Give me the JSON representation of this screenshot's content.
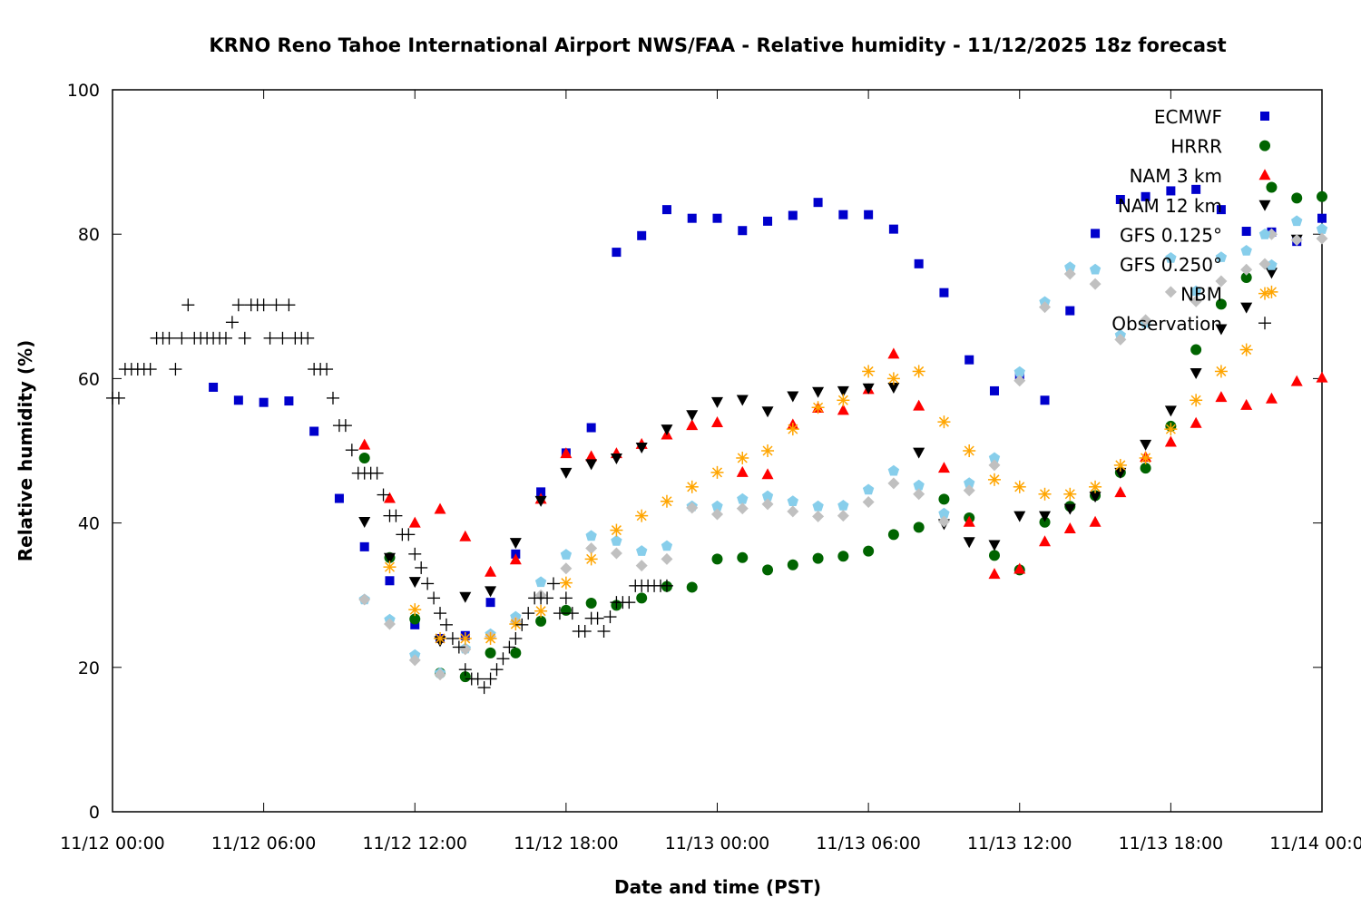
{
  "chart_data": {
    "type": "scatter",
    "title": "KRNO Reno Tahoe International Airport NWS/FAA - Relative humidity - 11/12/2025 18z forecast",
    "xlabel": "Date and time (PST)",
    "ylabel": "Relative humidity (%)",
    "xlim_hours": [
      0,
      48
    ],
    "ylim": [
      0,
      100
    ],
    "yticks": [
      0,
      20,
      40,
      60,
      80,
      100
    ],
    "xticks": [
      {
        "h": 0,
        "label": "11/12 00:00"
      },
      {
        "h": 6,
        "label": "11/12 06:00"
      },
      {
        "h": 12,
        "label": "11/12 12:00"
      },
      {
        "h": 18,
        "label": "11/12 18:00"
      },
      {
        "h": 24,
        "label": "11/13 00:00"
      },
      {
        "h": 30,
        "label": "11/13 06:00"
      },
      {
        "h": 36,
        "label": "11/13 12:00"
      },
      {
        "h": 42,
        "label": "11/13 18:00"
      },
      {
        "h": 48,
        "label": "11/14 00:00"
      }
    ],
    "legend_position": "top-right",
    "series": [
      {
        "name": "ECMWF",
        "marker": "square",
        "color": "#0000cc",
        "x": [
          4,
          5,
          6,
          7,
          8,
          9,
          10,
          11,
          12,
          13,
          14,
          15,
          16,
          17,
          18,
          19,
          20,
          21,
          22,
          23,
          24,
          25,
          26,
          27,
          28,
          29,
          30,
          31,
          32,
          33,
          34,
          35,
          36,
          37,
          38,
          39,
          40,
          41,
          42,
          43,
          44,
          45,
          46,
          47,
          48
        ],
        "y": [
          58.8,
          57,
          56.7,
          56.9,
          52.7,
          43.4,
          36.7,
          32,
          25.9,
          24,
          24.4,
          29,
          35.7,
          44.3,
          49.7,
          53.2,
          77.5,
          79.8,
          83.4,
          82.2,
          82.2,
          80.5,
          81.8,
          82.6,
          84.4,
          82.7,
          82.7,
          80.7,
          75.9,
          71.9,
          62.6,
          58.3,
          60.2,
          57,
          69.4,
          80.1,
          84.8,
          85.2,
          86,
          86.2,
          83.4,
          80.4,
          80.3,
          79,
          82.2
        ]
      },
      {
        "name": "HRRR",
        "color": "#006400",
        "marker": "circle",
        "x": [
          10,
          11,
          12,
          13,
          14,
          15,
          16,
          17,
          18,
          19,
          20,
          21,
          22,
          23,
          24,
          25,
          26,
          27,
          28,
          29,
          30,
          31,
          32,
          33,
          34,
          35,
          36,
          37,
          38,
          39,
          40,
          41,
          42,
          43,
          44,
          45,
          46,
          47,
          48
        ],
        "y": [
          49,
          35.2,
          26.7,
          19.2,
          18.7,
          22,
          22,
          26.4,
          27.9,
          28.9,
          28.6,
          29.6,
          31.2,
          31.1,
          35,
          35.2,
          33.5,
          34.2,
          35.1,
          35.4,
          36.1,
          38.4,
          39.4,
          43.3,
          40.7,
          35.5,
          33.5,
          40.1,
          42.3,
          43.8,
          47,
          47.6,
          53.4,
          64,
          70.3,
          74,
          86.5,
          85,
          85.2
        ]
      },
      {
        "name": "NAM 3 km",
        "color": "#ff0000",
        "marker": "triangle-up",
        "x": [
          10,
          11,
          12,
          13,
          14,
          15,
          16,
          17,
          18,
          19,
          20,
          21,
          22,
          23,
          24,
          25,
          26,
          27,
          28,
          29,
          30,
          31,
          32,
          33,
          34,
          35,
          36,
          37,
          38,
          39,
          40,
          41,
          42,
          43,
          44,
          45,
          46,
          47,
          48
        ],
        "y": [
          50.8,
          43.4,
          40,
          41.9,
          38.1,
          33.2,
          34.9,
          43.3,
          49.6,
          49.2,
          49.6,
          50.9,
          52.2,
          53.5,
          53.9,
          47,
          46.7,
          53.6,
          55.9,
          55.6,
          58.5,
          63.4,
          56.2,
          47.6,
          40.1,
          32.9,
          33.6,
          37.4,
          39.2,
          40.1,
          44.2,
          49.1,
          51.2,
          53.8,
          57.4,
          56.3,
          57.2,
          59.6,
          60.1
        ]
      },
      {
        "name": "NAM 12 km",
        "color": "#000000",
        "marker": "triangle-down",
        "x": [
          10,
          11,
          12,
          13,
          14,
          15,
          16,
          17,
          18,
          19,
          20,
          21,
          22,
          23,
          24,
          25,
          26,
          27,
          28,
          29,
          30,
          31,
          32,
          33,
          34,
          35,
          36,
          37,
          38,
          39,
          40,
          41,
          42,
          43,
          44,
          45,
          46,
          47
        ],
        "y": [
          40.2,
          35.2,
          31.9,
          23.7,
          29.8,
          30.6,
          37.3,
          43.1,
          47,
          48.2,
          49,
          50.5,
          53,
          55,
          56.8,
          57.1,
          55.5,
          57.6,
          58.2,
          58.3,
          58.7,
          58.8,
          49.8,
          39.9,
          37.4,
          37,
          41,
          41,
          42,
          43.7,
          47,
          50.9,
          55.6,
          60.8,
          66.9,
          69.9,
          74.7,
          79.3
        ]
      },
      {
        "name": "GFS 0.125°",
        "color": "#87ceeb",
        "marker": "pentagon",
        "x": [
          10,
          11,
          12,
          13,
          14,
          15,
          16,
          17,
          18,
          19,
          20,
          21,
          22,
          23,
          24,
          25,
          26,
          27,
          28,
          29,
          30,
          31,
          32,
          33,
          34,
          35,
          36,
          37,
          38,
          39,
          40,
          41,
          42,
          43,
          44,
          45,
          46,
          47,
          48
        ],
        "y": [
          29.4,
          26.6,
          21.7,
          19.2,
          22.6,
          24.6,
          27,
          31.8,
          35.6,
          38.2,
          37.5,
          36.1,
          36.8,
          42.3,
          42.3,
          43.3,
          43.7,
          43,
          42.3,
          42.4,
          44.6,
          47.2,
          45.2,
          41.3,
          45.5,
          49,
          60.9,
          70.6,
          75.4,
          75.1,
          66,
          67.7,
          76.7,
          72.1,
          76.8,
          77.7,
          75.7,
          81.8,
          80.7
        ]
      },
      {
        "name": "GFS 0.250°",
        "color": "#c0c0c0",
        "marker": "diamond",
        "x": [
          10,
          11,
          12,
          13,
          14,
          15,
          16,
          17,
          18,
          19,
          20,
          21,
          22,
          23,
          24,
          25,
          26,
          27,
          28,
          29,
          30,
          31,
          32,
          33,
          34,
          35,
          36,
          37,
          38,
          39,
          40,
          41,
          42,
          43,
          44,
          45,
          46,
          47,
          48
        ],
        "y": [
          29.4,
          26,
          21,
          19,
          22.5,
          24.3,
          26.3,
          30,
          33.7,
          36.5,
          35.8,
          34.1,
          35,
          42.1,
          41.2,
          42,
          42.6,
          41.6,
          40.9,
          41,
          42.9,
          45.5,
          44,
          40.2,
          44.5,
          48,
          59.7,
          69.9,
          74.5,
          73.1,
          65.4,
          68.1,
          72,
          70.7,
          73.5,
          75.1,
          80,
          79.2,
          79.4
        ]
      },
      {
        "name": "NBM",
        "color": "#ffa500",
        "marker": "asterisk",
        "x": [
          11,
          12,
          13,
          14,
          15,
          16,
          17,
          18,
          19,
          20,
          21,
          22,
          23,
          24,
          25,
          26,
          27,
          28,
          29,
          30,
          31,
          32,
          33,
          34,
          35,
          36,
          37,
          38,
          39,
          40,
          41,
          42,
          43,
          44,
          45,
          46
        ],
        "y": [
          33.9,
          28,
          24,
          24,
          24,
          26,
          27.8,
          31.7,
          35,
          39,
          41,
          43,
          45,
          47,
          49,
          50,
          53,
          56,
          57,
          61,
          60,
          61,
          54,
          50,
          46,
          45,
          44,
          44,
          45,
          48,
          49,
          53,
          57,
          61,
          64,
          72
        ]
      },
      {
        "name": "Observation",
        "color": "#000000",
        "marker": "plus",
        "x": [
          0,
          0.25,
          0.5,
          0.75,
          1,
          1.25,
          1.5,
          1.75,
          2,
          2.25,
          2.5,
          2.75,
          3,
          3.25,
          3.5,
          3.75,
          4,
          4.25,
          4.5,
          4.75,
          5,
          5.25,
          5.5,
          5.75,
          6,
          6.25,
          6.5,
          6.75,
          7,
          7.25,
          7.5,
          7.75,
          8,
          8.25,
          8.5,
          8.75,
          9,
          9.25,
          9.5,
          9.75,
          10,
          10.25,
          10.5,
          10.75,
          11,
          11.25,
          11.5,
          11.75,
          12,
          12.25,
          12.5,
          12.75,
          13,
          13.25,
          13.5,
          13.75,
          14,
          14.25,
          14.5,
          14.75,
          15,
          15.25,
          15.5,
          15.75,
          16,
          16.25,
          16.5,
          16.75,
          17,
          17.25,
          17.5,
          17.75,
          18,
          18.25,
          18.5,
          18.75,
          19,
          19.25,
          19.5,
          19.75,
          20,
          20.25,
          20.5,
          20.75,
          21,
          21.25,
          21.5,
          21.75,
          22
        ],
        "y": [
          57.3,
          57.3,
          61.3,
          61.3,
          61.3,
          61.3,
          61.3,
          65.6,
          65.6,
          65.6,
          61.3,
          65.6,
          70.2,
          65.6,
          65.6,
          65.6,
          65.6,
          65.6,
          65.6,
          67.8,
          70.2,
          65.6,
          70.2,
          70.2,
          70.2,
          65.6,
          70.2,
          65.6,
          70.2,
          65.6,
          65.6,
          65.6,
          61.3,
          61.3,
          61.3,
          57.3,
          53.5,
          53.5,
          50.1,
          46.9,
          46.9,
          46.9,
          46.9,
          43.9,
          41,
          41,
          38.4,
          38.4,
          35.7,
          33.8,
          31.6,
          29.6,
          27.5,
          25.9,
          24,
          22.8,
          19.7,
          18.4,
          18.4,
          17.2,
          18.4,
          19.7,
          21.2,
          22.8,
          24,
          25.9,
          27.5,
          29.6,
          29.6,
          29.6,
          31.6,
          27.5,
          29.6,
          27.5,
          25,
          25,
          26.8,
          26.8,
          25,
          27,
          29,
          29,
          29,
          31.3,
          31.3,
          31.3,
          31.3,
          31.3,
          31.3
        ]
      }
    ]
  }
}
